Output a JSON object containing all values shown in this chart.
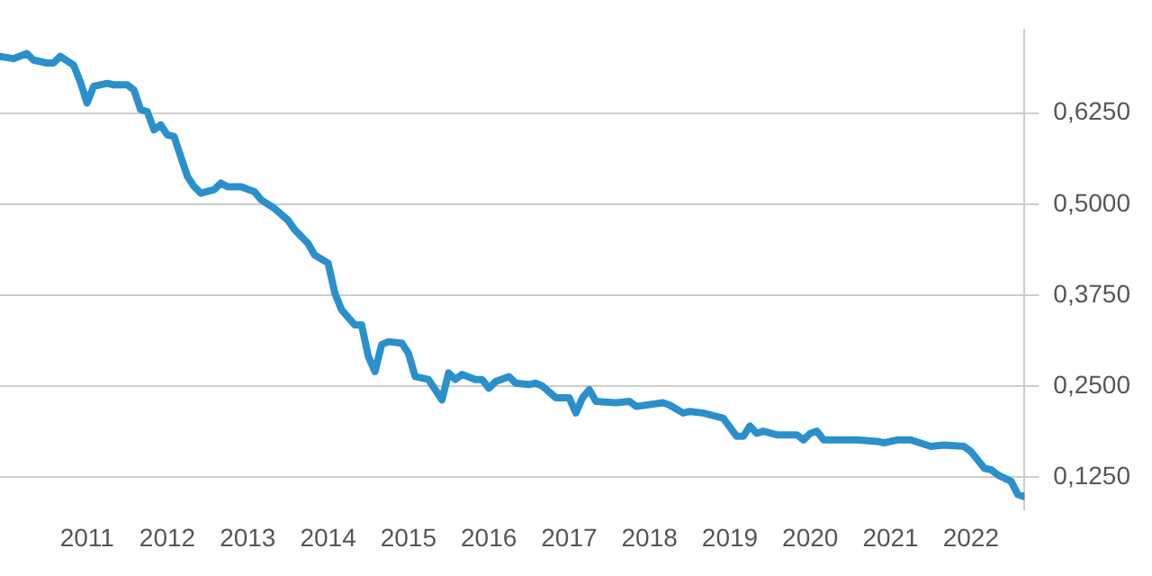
{
  "chart_data": {
    "type": "line",
    "xlim": [
      "2009-12",
      "2022-09"
    ],
    "xticks": [
      "2011",
      "2012",
      "2013",
      "2014",
      "2015",
      "2016",
      "2017",
      "2018",
      "2019",
      "2020",
      "2021",
      "2022"
    ],
    "yticks": [
      {
        "value": 0.125,
        "label": "0,1250"
      },
      {
        "value": 0.25,
        "label": "0,2500"
      },
      {
        "value": 0.375,
        "label": "0,3750"
      },
      {
        "value": 0.5,
        "label": "0,5000"
      },
      {
        "value": 0.625,
        "label": "0,6250"
      }
    ],
    "ylim": [
      0.08,
      0.74
    ],
    "grid": "y",
    "series": [
      {
        "color": "#2a90cc",
        "x": [
          "2009-12",
          "2010-02",
          "2010-04",
          "2010-05",
          "2010-07",
          "2010-08",
          "2010-09",
          "2010-11",
          "2010-12",
          "2011-01",
          "2011-02",
          "2011-04",
          "2011-05",
          "2011-07",
          "2011-08",
          "2011-09",
          "2011-10",
          "2011-11",
          "2011-12",
          "2012-01",
          "2012-02",
          "2012-03",
          "2012-04",
          "2012-05",
          "2012-06",
          "2012-08",
          "2012-09",
          "2012-10",
          "2012-12",
          "2013-02",
          "2013-03",
          "2013-05",
          "2013-07",
          "2013-08",
          "2013-10",
          "2013-11",
          "2014-01",
          "2014-02",
          "2014-03",
          "2014-05",
          "2014-06",
          "2014-07",
          "2014-08",
          "2014-09",
          "2014-10",
          "2014-12",
          "2015-01",
          "2015-02",
          "2015-04",
          "2015-06",
          "2015-07",
          "2015-08",
          "2015-09",
          "2015-11",
          "2015-12",
          "2016-01",
          "2016-02",
          "2016-04",
          "2016-05",
          "2016-07",
          "2016-08",
          "2016-09",
          "2016-11",
          "2017-01",
          "2017-02",
          "2017-03",
          "2017-04",
          "2017-05",
          "2017-08",
          "2017-10",
          "2017-11",
          "2018-03",
          "2018-04",
          "2018-06",
          "2018-07",
          "2018-09",
          "2018-12",
          "2019-02",
          "2019-03",
          "2019-04",
          "2019-05",
          "2019-06",
          "2019-08",
          "2019-11",
          "2019-12",
          "2020-01",
          "2020-02",
          "2020-03",
          "2020-04",
          "2020-08",
          "2020-11",
          "2020-12",
          "2021-02",
          "2021-04",
          "2021-07",
          "2021-09",
          "2021-12",
          "2022-01",
          "2022-03",
          "2022-04",
          "2022-05",
          "2022-07",
          "2022-08",
          "2022-09"
        ],
        "values": [
          0.703,
          0.7,
          0.707,
          0.698,
          0.694,
          0.694,
          0.703,
          0.691,
          0.668,
          0.639,
          0.662,
          0.666,
          0.664,
          0.664,
          0.657,
          0.63,
          0.627,
          0.602,
          0.609,
          0.595,
          0.593,
          0.565,
          0.538,
          0.524,
          0.515,
          0.52,
          0.529,
          0.524,
          0.524,
          0.517,
          0.506,
          0.494,
          0.478,
          0.465,
          0.446,
          0.43,
          0.419,
          0.378,
          0.355,
          0.334,
          0.334,
          0.291,
          0.27,
          0.307,
          0.311,
          0.309,
          0.295,
          0.263,
          0.259,
          0.231,
          0.268,
          0.259,
          0.266,
          0.259,
          0.259,
          0.247,
          0.256,
          0.263,
          0.254,
          0.252,
          0.254,
          0.25,
          0.234,
          0.234,
          0.213,
          0.234,
          0.245,
          0.229,
          0.227,
          0.229,
          0.222,
          0.227,
          0.224,
          0.213,
          0.215,
          0.213,
          0.206,
          0.181,
          0.181,
          0.195,
          0.185,
          0.188,
          0.183,
          0.183,
          0.176,
          0.185,
          0.188,
          0.176,
          0.176,
          0.176,
          0.174,
          0.172,
          0.176,
          0.176,
          0.167,
          0.169,
          0.167,
          0.16,
          0.137,
          0.135,
          0.128,
          0.119,
          0.101,
          0.098
        ]
      }
    ]
  }
}
